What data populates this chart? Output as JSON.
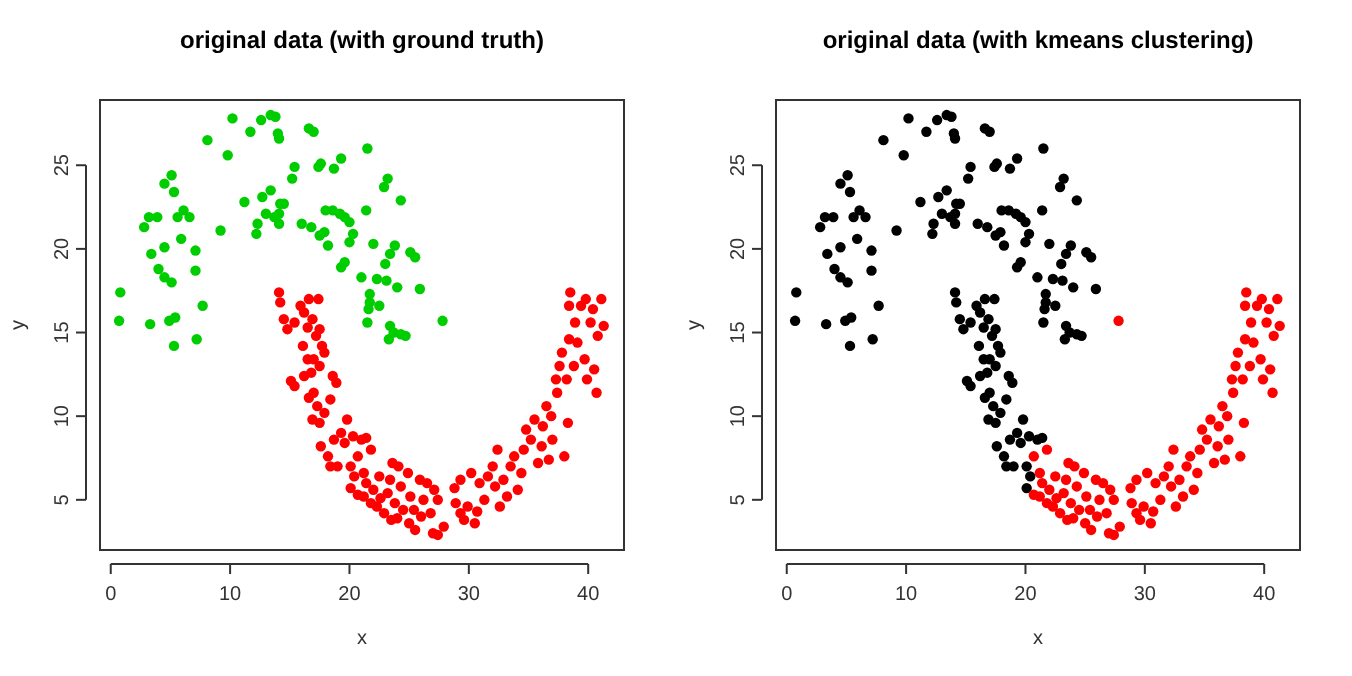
{
  "chart_data": [
    {
      "type": "scatter",
      "title": "original data (with ground truth)",
      "xlabel": "x",
      "ylabel": "y",
      "xlim": [
        -0.9,
        43
      ],
      "ylim": [
        2,
        28.9
      ],
      "xticks": [
        0,
        10,
        20,
        30,
        40
      ],
      "yticks": [
        5,
        10,
        15,
        20,
        25
      ],
      "grid": false,
      "marker": "circle",
      "series": [
        {
          "color": "#00cd00",
          "x": [
            0.8,
            0.7,
            2.8,
            3.2,
            3.9,
            3.4,
            3.3,
            4.0,
            4.5,
            4.5,
            4.5,
            5.1,
            5.3,
            5.1,
            4.9,
            5.4,
            5.3,
            5.6,
            6.1,
            6.6,
            5.9,
            7.1,
            7.1,
            7.7,
            7.2,
            8.1,
            9.2,
            9.8,
            10.2,
            11.2,
            11.7,
            12.3,
            12.2,
            12.6,
            12.7,
            13.0,
            13.4,
            13.4,
            13.8,
            13.7,
            14.1,
            14.0,
            14.1,
            14.2,
            14.5,
            14.1,
            15.2,
            15.4,
            16.0,
            16.6,
            17.0,
            16.8,
            17.4,
            17.6,
            17.5,
            17.9,
            18.2,
            18.0,
            18.6,
            18.7,
            19.3,
            19.2,
            19.6,
            19.3,
            19.6,
            20.0,
            20.0,
            20.3,
            21.5,
            21.4,
            21.0,
            21.7,
            21.7,
            21.5,
            21.6,
            22.0,
            22.3,
            22.5,
            22.9,
            23.2,
            23.1,
            23.0,
            23.4,
            23.8,
            23.4,
            23.3,
            23.7,
            24.3,
            24.7,
            24.0,
            24.3,
            25.1,
            25.5,
            25.9,
            27.8
          ],
          "values": [
            17.4,
            15.7,
            21.3,
            21.9,
            21.9,
            19.7,
            15.5,
            18.8,
            20.1,
            18.3,
            23.9,
            24.4,
            23.4,
            18.0,
            15.7,
            15.9,
            14.2,
            21.9,
            22.3,
            21.9,
            20.6,
            19.9,
            18.7,
            16.6,
            14.6,
            26.5,
            21.1,
            25.6,
            27.8,
            22.8,
            27.0,
            21.5,
            20.9,
            27.7,
            23.1,
            22.1,
            23.5,
            28.0,
            27.9,
            21.9,
            22.1,
            26.9,
            26.6,
            22.7,
            22.7,
            21.5,
            24.2,
            24.9,
            21.5,
            27.2,
            27.0,
            21.3,
            24.9,
            25.1,
            20.8,
            21.0,
            20.2,
            22.3,
            22.3,
            24.8,
            25.4,
            22.1,
            21.9,
            18.9,
            19.2,
            21.6,
            20.4,
            20.9,
            26.0,
            22.3,
            18.3,
            17.3,
            16.8,
            15.6,
            16.4,
            20.3,
            18.2,
            16.6,
            23.7,
            24.2,
            18.1,
            19.1,
            19.7,
            20.2,
            15.4,
            14.6,
            15.0,
            14.9,
            14.8,
            17.7,
            22.9,
            19.8,
            19.5,
            17.6,
            15.7
          ]
        },
        {
          "color": "#ff0000",
          "x": [
            14.1,
            14.2,
            14.5,
            14.8,
            15.4,
            15.1,
            15.4,
            15.9,
            16.2,
            16.6,
            17.4,
            16.5,
            16.9,
            17.2,
            17.5,
            17.7,
            17.9,
            16.1,
            16.5,
            16.2,
            16.8,
            17.0,
            17.5,
            17.0,
            16.6,
            17.3,
            16.9,
            17.5,
            17.9,
            18.4,
            18.6,
            18.9,
            17.6,
            18.2,
            18.4,
            19.0,
            18.7,
            19.3,
            19.8,
            19.6,
            20.3,
            21.0,
            21.4,
            20.1,
            20.7,
            20.4,
            20.1,
            21.2,
            21.8,
            21.4,
            20.7,
            21.2,
            21.8,
            22.0,
            22.5,
            22.3,
            22.9,
            22.6,
            23.2,
            23.4,
            23.6,
            24.1,
            23.8,
            23.5,
            24.0,
            24.5,
            24.3,
            24.9,
            25.1,
            25.4,
            25.0,
            25.5,
            26.0,
            26.2,
            25.9,
            26.5,
            27.1,
            27.4,
            26.8,
            27.0,
            27.4,
            27.9,
            28.8,
            28.9,
            29.3,
            29.6,
            29.9,
            29.3,
            30.2,
            30.5,
            30.7,
            30.9,
            31.3,
            31.6,
            32.0,
            32.4,
            32.2,
            32.6,
            32.9,
            33.2,
            33.5,
            33.8,
            34.1,
            34.4,
            34.6,
            34.8,
            35.2,
            35.5,
            35.8,
            36.1,
            36.2,
            36.5,
            36.7,
            36.9,
            37.0,
            37.3,
            37.4,
            37.6,
            37.8,
            38.0,
            38.3,
            38.2,
            38.4,
            38.5,
            38.4,
            38.8,
            39.1,
            38.9,
            39.4,
            39.7,
            39.8,
            39.9,
            40.2,
            40.4,
            40.5,
            40.8,
            41.1,
            41.3,
            40.7
          ],
          "values": [
            17.4,
            16.8,
            15.8,
            15.2,
            15.6,
            12.1,
            11.8,
            16.6,
            16.2,
            17.0,
            17.0,
            15.3,
            15.8,
            14.8,
            15.2,
            14.2,
            13.8,
            14.2,
            13.4,
            12.4,
            12.6,
            13.4,
            13.0,
            11.4,
            11.1,
            10.6,
            9.8,
            9.6,
            10.2,
            11.0,
            12.4,
            12.0,
            8.2,
            7.6,
            7.0,
            7.0,
            8.6,
            9.0,
            9.8,
            8.4,
            8.8,
            8.6,
            8.7,
            7.0,
            7.6,
            6.4,
            5.7,
            6.6,
            8.0,
            6.0,
            5.3,
            5.2,
            4.8,
            5.6,
            6.4,
            4.6,
            4.2,
            5.1,
            5.4,
            6.2,
            7.2,
            7.0,
            4.8,
            3.8,
            3.9,
            4.4,
            5.8,
            6.6,
            5.2,
            4.4,
            3.6,
            3.2,
            4.0,
            5.0,
            6.2,
            6.0,
            5.6,
            5.0,
            4.2,
            3.0,
            2.9,
            3.4,
            5.7,
            4.8,
            4.2,
            3.8,
            4.6,
            6.2,
            6.6,
            3.6,
            4.3,
            6.0,
            5.0,
            6.4,
            7.0,
            8.0,
            5.8,
            4.6,
            6.2,
            5.2,
            7.0,
            7.6,
            5.6,
            6.6,
            8.0,
            9.2,
            8.6,
            9.8,
            7.2,
            8.2,
            9.4,
            10.6,
            7.4,
            10.0,
            8.6,
            12.2,
            11.4,
            13.0,
            13.8,
            7.6,
            9.6,
            12.2,
            14.6,
            17.4,
            16.6,
            13.0,
            14.4,
            15.6,
            16.6,
            13.4,
            17.0,
            12.2,
            15.6,
            16.4,
            12.8,
            14.8,
            17.0,
            15.4,
            11.4
          ]
        }
      ]
    },
    {
      "type": "scatter",
      "title": "original data (with kmeans clustering)",
      "xlabel": "x",
      "ylabel": "y",
      "xlim": [
        -0.9,
        43
      ],
      "ylim": [
        2,
        28.9
      ],
      "xticks": [
        0,
        10,
        20,
        30,
        40
      ],
      "yticks": [
        5,
        10,
        15,
        20,
        25
      ],
      "grid": false,
      "marker": "circle",
      "series": [
        {
          "color": "#000000",
          "x": [
            0.8,
            0.7,
            2.8,
            3.2,
            3.9,
            3.4,
            3.3,
            4.0,
            4.5,
            4.5,
            4.5,
            5.1,
            5.3,
            5.1,
            4.9,
            5.4,
            5.3,
            5.6,
            6.1,
            6.6,
            5.9,
            7.1,
            7.1,
            7.7,
            7.2,
            8.1,
            9.2,
            9.8,
            10.2,
            11.2,
            11.7,
            12.3,
            12.2,
            12.6,
            12.7,
            13.0,
            13.4,
            13.4,
            13.8,
            13.7,
            14.1,
            14.0,
            14.1,
            14.2,
            14.5,
            14.1,
            15.2,
            15.4,
            16.0,
            16.6,
            17.0,
            16.8,
            17.4,
            17.6,
            17.5,
            17.9,
            18.2,
            18.0,
            18.6,
            18.7,
            19.3,
            19.2,
            19.6,
            19.3,
            19.6,
            20.0,
            20.0,
            20.3,
            21.5,
            21.4,
            21.0,
            21.7,
            21.7,
            21.5,
            21.6,
            22.0,
            22.3,
            22.5,
            22.9,
            23.2,
            23.1,
            23.0,
            23.4,
            23.8,
            23.4,
            23.3,
            23.7,
            24.3,
            24.7,
            24.0,
            24.3,
            25.1,
            25.5,
            25.9,
            14.1,
            14.2,
            14.5,
            14.8,
            15.4,
            15.1,
            15.4,
            15.9,
            16.2,
            16.6,
            17.4,
            16.5,
            16.9,
            17.2,
            17.5,
            17.7,
            17.9,
            16.1,
            16.5,
            16.2,
            16.8,
            17.0,
            17.5,
            17.0,
            16.6,
            17.3,
            16.9,
            17.5,
            17.9,
            18.4,
            18.6,
            18.9,
            17.6,
            18.2,
            18.4,
            19.0,
            18.7,
            19.3,
            19.8,
            19.6,
            20.3,
            21.0,
            21.4,
            20.1,
            20.4,
            20.1
          ],
          "values": [
            17.4,
            15.7,
            21.3,
            21.9,
            21.9,
            19.7,
            15.5,
            18.8,
            20.1,
            18.3,
            23.9,
            24.4,
            23.4,
            18.0,
            15.7,
            15.9,
            14.2,
            21.9,
            22.3,
            21.9,
            20.6,
            19.9,
            18.7,
            16.6,
            14.6,
            26.5,
            21.1,
            25.6,
            27.8,
            22.8,
            27.0,
            21.5,
            20.9,
            27.7,
            23.1,
            22.1,
            23.5,
            28.0,
            27.9,
            21.9,
            22.1,
            26.9,
            26.6,
            22.7,
            22.7,
            21.5,
            24.2,
            24.9,
            21.5,
            27.2,
            27.0,
            21.3,
            24.9,
            25.1,
            20.8,
            21.0,
            20.2,
            22.3,
            22.3,
            24.8,
            25.4,
            22.1,
            21.9,
            18.9,
            19.2,
            21.6,
            20.4,
            20.9,
            26.0,
            22.3,
            18.3,
            17.3,
            16.8,
            15.6,
            16.4,
            20.3,
            18.2,
            16.6,
            23.7,
            24.2,
            18.1,
            19.1,
            19.7,
            20.2,
            15.4,
            14.6,
            15.0,
            14.9,
            14.8,
            17.7,
            22.9,
            19.8,
            19.5,
            17.6,
            17.4,
            16.8,
            15.8,
            15.2,
            15.6,
            12.1,
            11.8,
            16.6,
            16.2,
            17.0,
            17.0,
            15.3,
            15.8,
            14.8,
            15.2,
            14.2,
            13.8,
            14.2,
            13.4,
            12.4,
            12.6,
            13.4,
            13.0,
            11.4,
            11.1,
            10.6,
            9.8,
            9.6,
            10.2,
            11.0,
            12.4,
            12.0,
            8.2,
            7.6,
            7.0,
            7.0,
            8.6,
            9.0,
            9.8,
            8.4,
            8.8,
            8.6,
            8.7,
            7.0,
            6.4,
            5.7
          ]
        },
        {
          "color": "#ff0000",
          "x": [
            20.7,
            21.2,
            21.8,
            21.4,
            20.7,
            21.2,
            21.8,
            22.0,
            22.5,
            22.3,
            22.9,
            22.6,
            23.2,
            23.4,
            23.6,
            24.1,
            23.8,
            23.5,
            24.0,
            24.5,
            24.3,
            24.9,
            25.1,
            25.4,
            25.0,
            25.5,
            26.0,
            26.2,
            25.9,
            26.5,
            27.1,
            27.4,
            26.8,
            27.0,
            27.4,
            27.9,
            28.8,
            28.9,
            29.3,
            29.6,
            29.9,
            29.3,
            30.2,
            30.5,
            30.7,
            30.9,
            31.3,
            31.6,
            32.0,
            32.4,
            32.2,
            32.6,
            32.9,
            33.2,
            33.5,
            33.8,
            34.1,
            34.4,
            34.6,
            34.8,
            35.2,
            35.5,
            35.8,
            36.1,
            36.2,
            36.5,
            36.7,
            36.9,
            37.0,
            37.3,
            37.4,
            37.6,
            37.8,
            38.0,
            38.3,
            38.2,
            38.4,
            38.5,
            38.4,
            38.8,
            39.1,
            38.9,
            39.4,
            39.7,
            39.8,
            39.9,
            40.2,
            40.4,
            40.5,
            40.8,
            41.1,
            41.3,
            40.7,
            27.8
          ],
          "values": [
            7.6,
            6.6,
            8.0,
            6.0,
            5.3,
            5.2,
            4.8,
            5.6,
            6.4,
            4.6,
            4.2,
            5.1,
            5.4,
            6.2,
            7.2,
            7.0,
            4.8,
            3.8,
            3.9,
            4.4,
            5.8,
            6.6,
            5.2,
            4.4,
            3.6,
            3.2,
            4.0,
            5.0,
            6.2,
            6.0,
            5.6,
            5.0,
            4.2,
            3.0,
            2.9,
            3.4,
            5.7,
            4.8,
            4.2,
            3.8,
            4.6,
            6.2,
            6.6,
            3.6,
            4.3,
            6.0,
            5.0,
            6.4,
            7.0,
            8.0,
            5.8,
            4.6,
            6.2,
            5.2,
            7.0,
            7.6,
            5.6,
            6.6,
            8.0,
            9.2,
            8.6,
            9.8,
            7.2,
            8.2,
            9.4,
            10.6,
            7.4,
            10.0,
            8.6,
            12.2,
            11.4,
            13.0,
            13.8,
            7.6,
            9.6,
            12.2,
            14.6,
            17.4,
            16.6,
            13.0,
            14.4,
            15.6,
            16.6,
            13.4,
            17.0,
            12.2,
            15.6,
            16.4,
            12.8,
            14.8,
            17.0,
            15.4,
            11.4,
            15.7
          ]
        }
      ]
    }
  ]
}
